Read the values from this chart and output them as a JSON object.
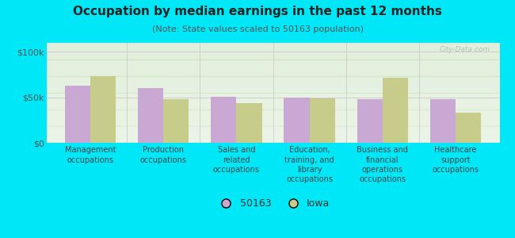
{
  "title": "Occupation by median earnings in the past 12 months",
  "subtitle": "(Note: State values scaled to 50163 population)",
  "categories": [
    "Management\noccupations",
    "Production\noccupations",
    "Sales and\nrelated\noccupations",
    "Education,\ntraining, and\nlibrary\noccupations",
    "Business and\nfinancial\noperations\noccupations",
    "Healthcare\nsupport\noccupations"
  ],
  "values_50163": [
    63000,
    60000,
    51000,
    50000,
    48000,
    48000
  ],
  "values_iowa": [
    73000,
    48000,
    44000,
    49000,
    72000,
    33000
  ],
  "color_50163": "#c9a8d4",
  "color_iowa": "#c8cc8a",
  "bar_width": 0.35,
  "ylim": [
    0,
    110000
  ],
  "yticks": [
    0,
    50000,
    100000
  ],
  "ytick_labels": [
    "$0",
    "$50k",
    "$100k"
  ],
  "background_color": "#00e8f8",
  "plot_bg_gradient_top": "#d4e8c8",
  "plot_bg_gradient_bottom": "#f4faf0",
  "legend_labels": [
    "50163",
    "Iowa"
  ],
  "watermark": "City-Data.com",
  "title_fontsize": 11,
  "subtitle_fontsize": 8,
  "tick_fontsize": 8,
  "xlabel_fontsize": 7
}
